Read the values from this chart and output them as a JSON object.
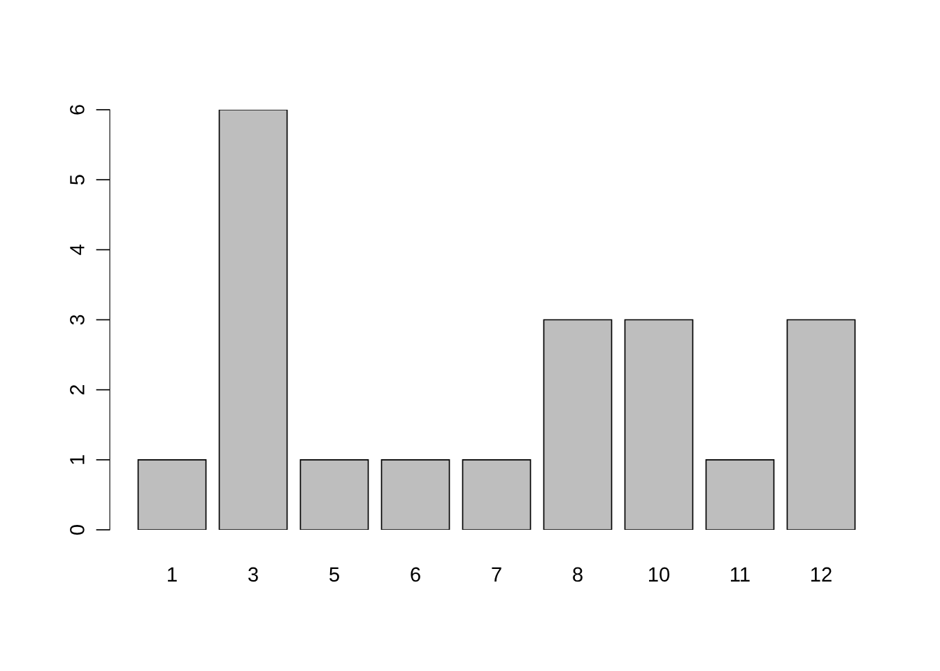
{
  "chart_data": {
    "type": "bar",
    "categories": [
      "1",
      "3",
      "5",
      "6",
      "7",
      "8",
      "10",
      "11",
      "12"
    ],
    "values": [
      1,
      6,
      1,
      1,
      1,
      3,
      3,
      1,
      3
    ],
    "color": "#bebebe",
    "ylim": [
      0,
      6
    ],
    "yticks": [
      0,
      1,
      2,
      3,
      4,
      5,
      6
    ],
    "grid": false,
    "legend": false
  }
}
